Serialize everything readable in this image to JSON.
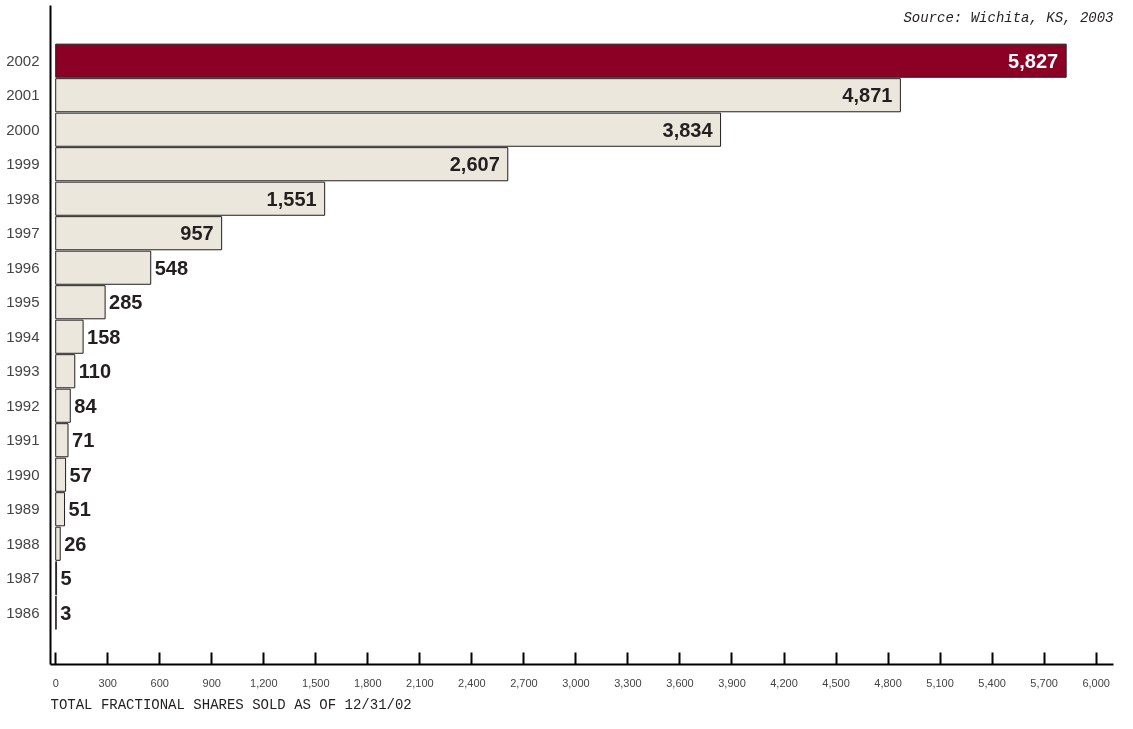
{
  "chart_data": {
    "type": "bar",
    "orientation": "horizontal",
    "categories": [
      "2002",
      "2001",
      "2000",
      "1999",
      "1998",
      "1997",
      "1996",
      "1995",
      "1994",
      "1993",
      "1992",
      "1991",
      "1990",
      "1989",
      "1988",
      "1987",
      "1986"
    ],
    "values": [
      5827,
      4871,
      3834,
      2607,
      1551,
      957,
      548,
      285,
      158,
      110,
      84,
      71,
      57,
      51,
      26,
      5,
      3
    ],
    "colors": [
      "#8b0024",
      "#ebe7dc",
      "#ebe7dc",
      "#ebe7dc",
      "#ebe7dc",
      "#ebe7dc",
      "#ebe7dc",
      "#ebe7dc",
      "#ebe7dc",
      "#ebe7dc",
      "#ebe7dc",
      "#ebe7dc",
      "#ebe7dc",
      "#ebe7dc",
      "#ebe7dc",
      "#ebe7dc",
      "#ebe7dc"
    ],
    "value_labels": [
      "5,827",
      "4,871",
      "3,834",
      "2,607",
      "1,551",
      "957",
      "548",
      "285",
      "158",
      "110",
      "84",
      "71",
      "57",
      "51",
      "26",
      "5",
      "3"
    ],
    "xlabel": "TOTAL FRACTIONAL SHARES SOLD AS OF 12/31/02",
    "xlim": [
      -30,
      6100
    ],
    "xticks": [
      0,
      300,
      600,
      900,
      {
        "value": 1200,
        "label": "1,200"
      },
      {
        "value": 1500,
        "label": "1,500"
      },
      {
        "value": 1800,
        "label": "1,800"
      },
      {
        "value": 2100,
        "label": "2,100"
      },
      {
        "value": 2400,
        "label": "2,400"
      },
      {
        "value": 2700,
        "label": "2,700"
      },
      {
        "value": 3000,
        "label": "3,000"
      },
      {
        "value": 3300,
        "label": "3,300"
      },
      {
        "value": 3600,
        "label": "3,600"
      },
      {
        "value": 3900,
        "label": "3,900"
      },
      {
        "value": 4200,
        "label": "4,200"
      },
      {
        "value": 4500,
        "label": "4,500"
      },
      {
        "value": 4800,
        "label": "4,800"
      },
      {
        "value": 5100,
        "label": "5,100"
      },
      {
        "value": 5400,
        "label": "5,400"
      },
      {
        "value": 5700,
        "label": "5,700"
      },
      {
        "value": 6000,
        "label": "6,000"
      }
    ],
    "grid": false,
    "annotations": [
      "Source: Wichita, KS, 2003"
    ]
  }
}
